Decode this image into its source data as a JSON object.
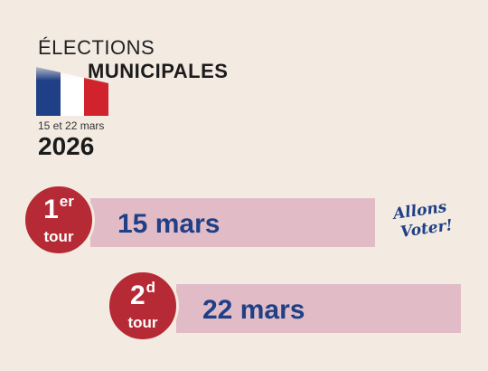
{
  "logo": {
    "line1": "ÉLECTIONS",
    "line2": "MUNICIPALES",
    "dates": "15 et 22 mars",
    "year": "2026",
    "flag_colors": [
      "#1f3f86",
      "#ffffff",
      "#d1232d"
    ]
  },
  "rounds": [
    {
      "number": "1",
      "suffix": "er",
      "label": "tour",
      "date": "15 mars"
    },
    {
      "number": "2",
      "suffix": "d",
      "label": "tour",
      "date": "22 mars"
    }
  ],
  "slogan": {
    "line1": "Allons",
    "line2": "Voter!"
  },
  "colors": {
    "background": "#f3ebe2",
    "badge": "#b52a35",
    "bar": "#e1bcc6",
    "date_text": "#1f3f86"
  }
}
